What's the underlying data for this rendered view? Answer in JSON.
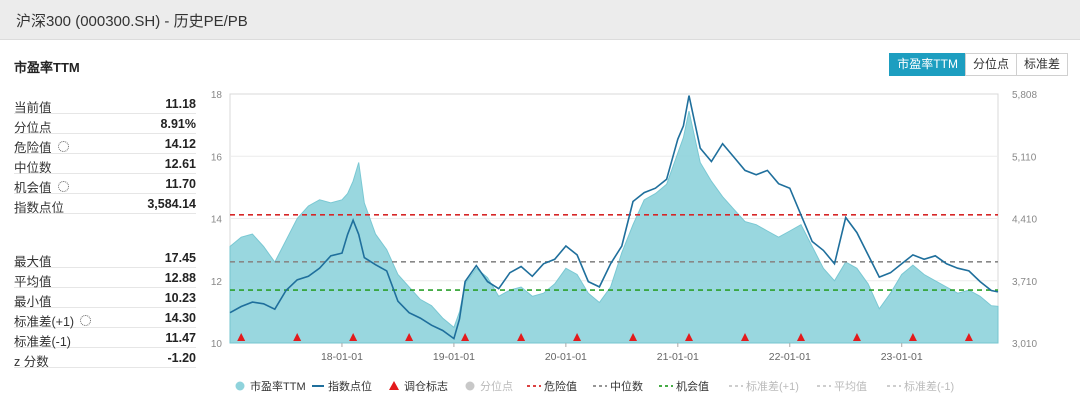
{
  "page": {
    "title": "沪深300 (000300.SH) - 历史PE/PB"
  },
  "section_title": "市盈率TTM",
  "tabs": [
    {
      "label": "市盈率TTM",
      "active": true
    },
    {
      "label": "分位点",
      "active": false
    },
    {
      "label": "标准差",
      "active": false
    }
  ],
  "stats_group1": [
    {
      "label": "当前值",
      "value": "11.18",
      "gear": false
    },
    {
      "label": "分位点",
      "value": "8.91%",
      "gear": false
    },
    {
      "label": "危险值",
      "value": "14.12",
      "gear": true
    },
    {
      "label": "中位数",
      "value": "12.61",
      "gear": false
    },
    {
      "label": "机会值",
      "value": "11.70",
      "gear": true
    },
    {
      "label": "指数点位",
      "value": "3,584.14",
      "gear": false
    }
  ],
  "stats_group2": [
    {
      "label": "最大值",
      "value": "17.45",
      "gear": false
    },
    {
      "label": "平均值",
      "value": "12.88",
      "gear": false
    },
    {
      "label": "最小值",
      "value": "10.23",
      "gear": false
    },
    {
      "label": "标准差(+1)",
      "value": "14.30",
      "gear": true
    },
    {
      "label": "标准差(-1)",
      "value": "11.47",
      "gear": false
    },
    {
      "label": "z 分数",
      "value": "-1.20",
      "gear": false
    }
  ],
  "chart_data": {
    "type": "area",
    "x_range": [
      2017.0,
      2023.86
    ],
    "x_ticks": [
      {
        "x": 2018.0,
        "label": "18-01-01"
      },
      {
        "x": 2019.0,
        "label": "19-01-01"
      },
      {
        "x": 2020.0,
        "label": "20-01-01"
      },
      {
        "x": 2021.0,
        "label": "21-01-01"
      },
      {
        "x": 2022.0,
        "label": "22-01-01"
      },
      {
        "x": 2023.0,
        "label": "23-01-01"
      }
    ],
    "y_left": {
      "range": [
        10,
        18
      ],
      "ticks": [
        "10",
        "12",
        "14",
        "16",
        "18"
      ]
    },
    "y_right": {
      "range": [
        3010,
        5808
      ],
      "ticks": [
        "3,010",
        "3,710",
        "4,410",
        "5,110",
        "5,808"
      ]
    },
    "grid": true,
    "legend_position": "bottom",
    "colors": {
      "pe_area": "#8fd3dc",
      "index_line": "#1f6f9c",
      "marker": "#e31a1c",
      "danger": "#d62728",
      "median": "#888888",
      "opportunity": "#2ca02c",
      "inactive": "#c8c8c8"
    },
    "reference_lines": {
      "danger": 14.12,
      "median": 12.61,
      "opportunity": 11.7
    },
    "pe_ttm": [
      [
        2017.0,
        13.1
      ],
      [
        2017.1,
        13.4
      ],
      [
        2017.2,
        13.5
      ],
      [
        2017.3,
        13.1
      ],
      [
        2017.4,
        12.6
      ],
      [
        2017.5,
        13.3
      ],
      [
        2017.6,
        14.0
      ],
      [
        2017.7,
        14.4
      ],
      [
        2017.8,
        14.6
      ],
      [
        2017.9,
        14.5
      ],
      [
        2018.0,
        14.6
      ],
      [
        2018.05,
        14.8
      ],
      [
        2018.1,
        15.2
      ],
      [
        2018.15,
        15.8
      ],
      [
        2018.2,
        14.5
      ],
      [
        2018.3,
        13.5
      ],
      [
        2018.4,
        13.0
      ],
      [
        2018.5,
        12.2
      ],
      [
        2018.6,
        11.8
      ],
      [
        2018.7,
        11.4
      ],
      [
        2018.8,
        11.2
      ],
      [
        2018.9,
        10.8
      ],
      [
        2019.0,
        10.5
      ],
      [
        2019.05,
        11.0
      ],
      [
        2019.1,
        11.9
      ],
      [
        2019.2,
        12.4
      ],
      [
        2019.3,
        12.1
      ],
      [
        2019.4,
        11.5
      ],
      [
        2019.5,
        11.7
      ],
      [
        2019.6,
        11.8
      ],
      [
        2019.7,
        11.5
      ],
      [
        2019.8,
        11.6
      ],
      [
        2019.9,
        11.9
      ],
      [
        2020.0,
        12.4
      ],
      [
        2020.1,
        12.2
      ],
      [
        2020.2,
        11.6
      ],
      [
        2020.3,
        11.3
      ],
      [
        2020.4,
        11.8
      ],
      [
        2020.5,
        12.9
      ],
      [
        2020.6,
        13.8
      ],
      [
        2020.7,
        14.6
      ],
      [
        2020.8,
        14.8
      ],
      [
        2020.9,
        15.1
      ],
      [
        2021.0,
        16.1
      ],
      [
        2021.05,
        16.6
      ],
      [
        2021.1,
        17.45
      ],
      [
        2021.2,
        15.8
      ],
      [
        2021.3,
        15.2
      ],
      [
        2021.4,
        14.7
      ],
      [
        2021.5,
        14.3
      ],
      [
        2021.6,
        13.9
      ],
      [
        2021.7,
        13.8
      ],
      [
        2021.8,
        13.6
      ],
      [
        2021.9,
        13.4
      ],
      [
        2022.0,
        13.6
      ],
      [
        2022.1,
        13.8
      ],
      [
        2022.2,
        13.1
      ],
      [
        2022.3,
        12.4
      ],
      [
        2022.4,
        12.0
      ],
      [
        2022.5,
        12.6
      ],
      [
        2022.6,
        12.4
      ],
      [
        2022.7,
        11.9
      ],
      [
        2022.8,
        11.1
      ],
      [
        2022.9,
        11.6
      ],
      [
        2023.0,
        12.2
      ],
      [
        2023.1,
        12.5
      ],
      [
        2023.2,
        12.2
      ],
      [
        2023.3,
        12.0
      ],
      [
        2023.4,
        11.8
      ],
      [
        2023.5,
        11.6
      ],
      [
        2023.6,
        11.7
      ],
      [
        2023.7,
        11.5
      ],
      [
        2023.8,
        11.2
      ],
      [
        2023.86,
        11.18
      ]
    ],
    "index_points": [
      [
        2017.0,
        3350
      ],
      [
        2017.1,
        3420
      ],
      [
        2017.2,
        3470
      ],
      [
        2017.3,
        3450
      ],
      [
        2017.4,
        3390
      ],
      [
        2017.5,
        3600
      ],
      [
        2017.6,
        3720
      ],
      [
        2017.7,
        3760
      ],
      [
        2017.8,
        3850
      ],
      [
        2017.9,
        3990
      ],
      [
        2018.0,
        4020
      ],
      [
        2018.05,
        4230
      ],
      [
        2018.1,
        4390
      ],
      [
        2018.15,
        4230
      ],
      [
        2018.2,
        3970
      ],
      [
        2018.3,
        3890
      ],
      [
        2018.4,
        3820
      ],
      [
        2018.5,
        3480
      ],
      [
        2018.6,
        3350
      ],
      [
        2018.7,
        3290
      ],
      [
        2018.8,
        3210
      ],
      [
        2018.9,
        3150
      ],
      [
        2019.0,
        3060
      ],
      [
        2019.05,
        3280
      ],
      [
        2019.1,
        3700
      ],
      [
        2019.2,
        3880
      ],
      [
        2019.3,
        3700
      ],
      [
        2019.4,
        3620
      ],
      [
        2019.5,
        3800
      ],
      [
        2019.6,
        3870
      ],
      [
        2019.7,
        3760
      ],
      [
        2019.8,
        3900
      ],
      [
        2019.9,
        3950
      ],
      [
        2020.0,
        4100
      ],
      [
        2020.1,
        4000
      ],
      [
        2020.2,
        3700
      ],
      [
        2020.3,
        3640
      ],
      [
        2020.4,
        3900
      ],
      [
        2020.5,
        4100
      ],
      [
        2020.6,
        4600
      ],
      [
        2020.7,
        4700
      ],
      [
        2020.8,
        4750
      ],
      [
        2020.9,
        4850
      ],
      [
        2021.0,
        5300
      ],
      [
        2021.05,
        5450
      ],
      [
        2021.1,
        5790
      ],
      [
        2021.2,
        5200
      ],
      [
        2021.3,
        5050
      ],
      [
        2021.4,
        5250
      ],
      [
        2021.5,
        5100
      ],
      [
        2021.6,
        4950
      ],
      [
        2021.7,
        4900
      ],
      [
        2021.8,
        4950
      ],
      [
        2021.9,
        4800
      ],
      [
        2022.0,
        4750
      ],
      [
        2022.1,
        4450
      ],
      [
        2022.2,
        4150
      ],
      [
        2022.3,
        4050
      ],
      [
        2022.4,
        3900
      ],
      [
        2022.5,
        4420
      ],
      [
        2022.6,
        4250
      ],
      [
        2022.7,
        4000
      ],
      [
        2022.8,
        3750
      ],
      [
        2022.9,
        3800
      ],
      [
        2023.0,
        3900
      ],
      [
        2023.1,
        4000
      ],
      [
        2023.2,
        3950
      ],
      [
        2023.3,
        3990
      ],
      [
        2023.4,
        3900
      ],
      [
        2023.5,
        3850
      ],
      [
        2023.6,
        3820
      ],
      [
        2023.7,
        3700
      ],
      [
        2023.8,
        3600
      ],
      [
        2023.86,
        3584
      ]
    ],
    "rebalance_markers": [
      2017.1,
      2017.6,
      2018.1,
      2018.6,
      2019.1,
      2019.6,
      2020.1,
      2020.6,
      2021.1,
      2021.6,
      2022.1,
      2022.6,
      2023.1,
      2023.6
    ],
    "legend": [
      {
        "label": "市盈率TTM",
        "symbol": "dot",
        "color": "#8fd3dc"
      },
      {
        "label": "指数点位",
        "symbol": "line",
        "color": "#1f6f9c"
      },
      {
        "label": "调仓标志",
        "symbol": "triangle",
        "color": "#e31a1c"
      },
      {
        "label": "分位点",
        "symbol": "dot",
        "color": "#c8c8c8"
      },
      {
        "label": "危险值",
        "symbol": "dash",
        "color": "#d62728"
      },
      {
        "label": "中位数",
        "symbol": "dash",
        "color": "#888888"
      },
      {
        "label": "机会值",
        "symbol": "dash",
        "color": "#2ca02c"
      },
      {
        "label": "标准差(+1)",
        "symbol": "dash",
        "color": "#c8c8c8"
      },
      {
        "label": "平均值",
        "symbol": "dash",
        "color": "#c8c8c8"
      },
      {
        "label": "标准差(-1)",
        "symbol": "dash",
        "color": "#c8c8c8"
      }
    ]
  }
}
